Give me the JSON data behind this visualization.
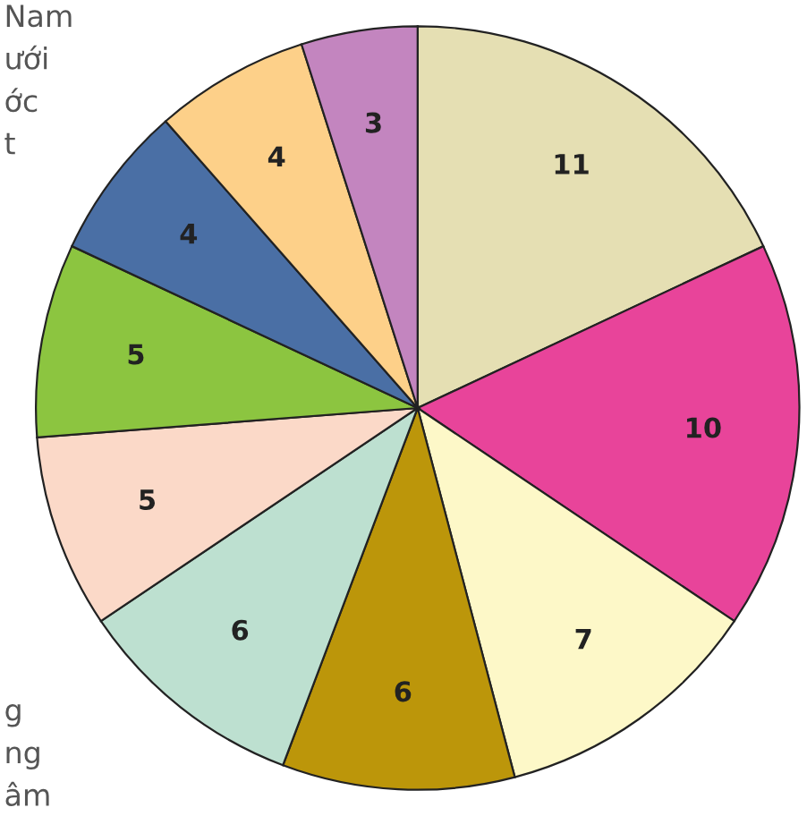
{
  "chart_data": {
    "type": "pie",
    "categories": [
      null,
      null,
      null,
      null,
      null,
      null,
      null,
      null,
      null,
      null
    ],
    "values": [
      11,
      10,
      7,
      6,
      6,
      5,
      5,
      4,
      4,
      3
    ],
    "colors": [
      "#e5dfb3",
      "#e8449a",
      "#fdf8c8",
      "#bc960a",
      "#bde0d0",
      "#fbd9c8",
      "#8cc540",
      "#4a6fa5",
      "#fdd089",
      "#c385bf"
    ],
    "data_labels": true,
    "annotations": [
      "Nam\nưới\nớc\nt",
      "g\nng\nâm"
    ]
  }
}
